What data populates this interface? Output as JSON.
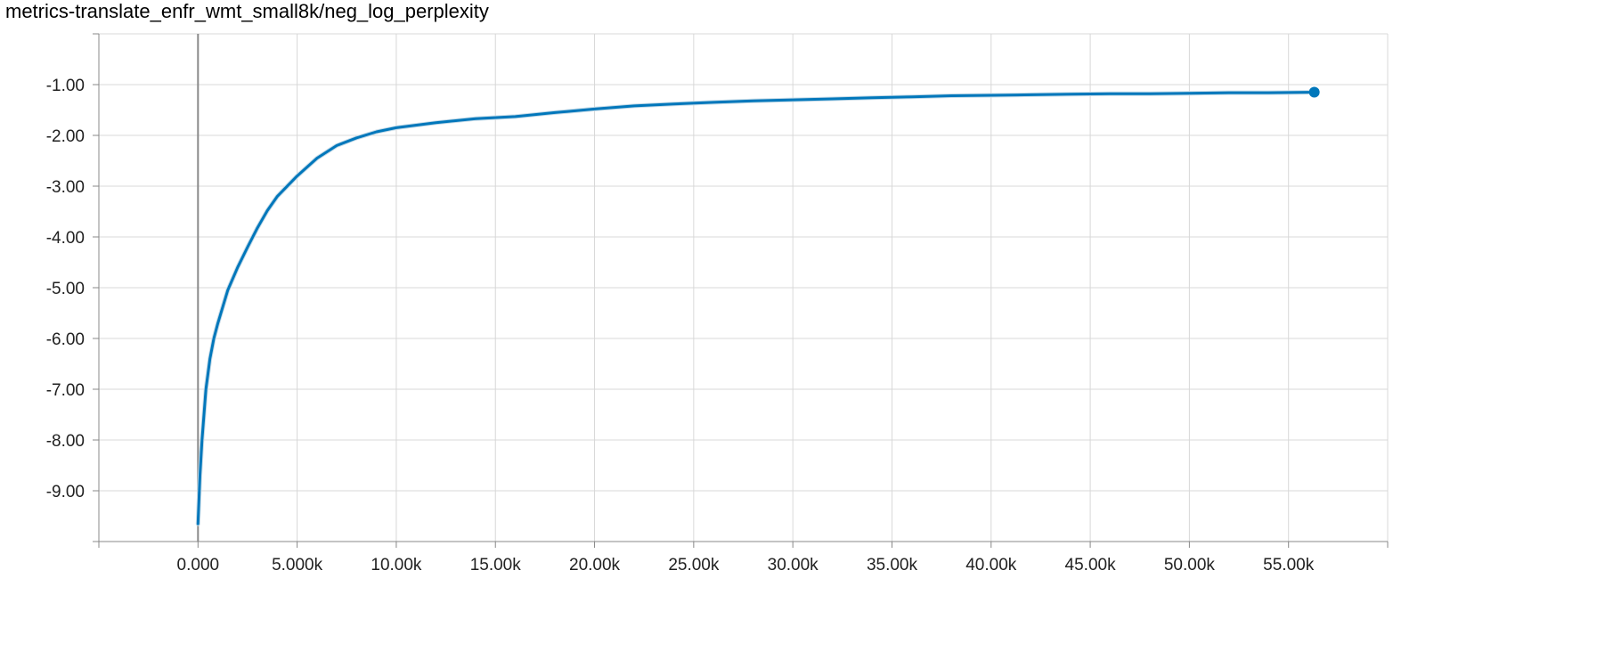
{
  "chart_data": {
    "type": "line",
    "title": "metrics-translate_enfr_wmt_small8k/neg_log_perplexity",
    "xlabel": "",
    "ylabel": "",
    "xlim": [
      -5000,
      60000
    ],
    "ylim": [
      -10.0,
      0.0
    ],
    "grid": true,
    "x_ticks": [
      0,
      5000,
      10000,
      15000,
      20000,
      25000,
      30000,
      35000,
      40000,
      45000,
      50000,
      55000
    ],
    "x_tick_labels": [
      "0.000",
      "5.000k",
      "10.00k",
      "15.00k",
      "20.00k",
      "25.00k",
      "30.00k",
      "35.00k",
      "40.00k",
      "45.00k",
      "50.00k",
      "55.00k"
    ],
    "y_ticks": [
      -1,
      -2,
      -3,
      -4,
      -5,
      -6,
      -7,
      -8,
      -9
    ],
    "y_tick_labels": [
      "-1.00",
      "-2.00",
      "-3.00",
      "-4.00",
      "-5.00",
      "-6.00",
      "-7.00",
      "-8.00",
      "-9.00"
    ],
    "series": [
      {
        "color": "#0077bb",
        "x": [
          0,
          100,
          200,
          400,
          600,
          800,
          1000,
          1500,
          2000,
          2500,
          3000,
          3500,
          4000,
          5000,
          6000,
          7000,
          8000,
          9000,
          10000,
          12000,
          14000,
          16000,
          18000,
          20000,
          22000,
          24000,
          26000,
          28000,
          30000,
          32000,
          34000,
          36000,
          38000,
          40000,
          42000,
          44000,
          46000,
          48000,
          50000,
          52000,
          54000,
          56000
        ],
        "y": [
          -9.65,
          -8.7,
          -8.0,
          -7.0,
          -6.4,
          -6.0,
          -5.7,
          -5.05,
          -4.6,
          -4.2,
          -3.82,
          -3.48,
          -3.2,
          -2.8,
          -2.45,
          -2.2,
          -2.05,
          -1.93,
          -1.85,
          -1.75,
          -1.67,
          -1.63,
          -1.55,
          -1.48,
          -1.42,
          -1.38,
          -1.35,
          -1.32,
          -1.3,
          -1.28,
          -1.26,
          -1.24,
          -1.22,
          -1.21,
          -1.2,
          -1.19,
          -1.18,
          -1.18,
          -1.17,
          -1.16,
          -1.16,
          -1.15
        ]
      }
    ],
    "last_point": {
      "x": 56300,
      "y": -1.15
    },
    "colors": {
      "line": "#0077bb",
      "smoothing_shadow": "#c6dbe8",
      "grid": "#d8d8d8",
      "axis": "#888888"
    }
  }
}
